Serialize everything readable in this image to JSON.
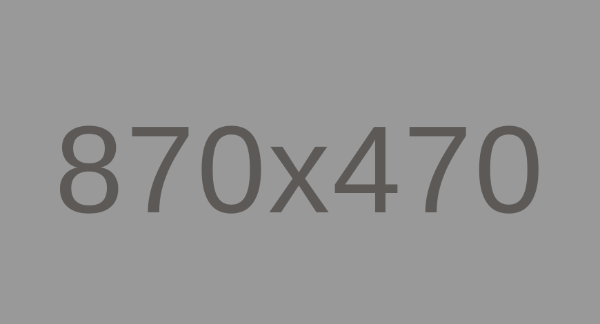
{
  "placeholder": {
    "label": "870x470",
    "background_color": "#999999",
    "text_color": "#5d5957"
  }
}
